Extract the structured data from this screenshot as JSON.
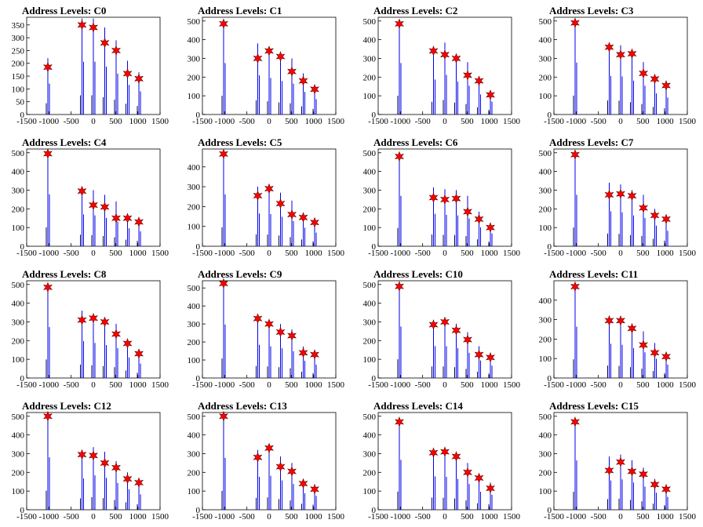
{
  "chart_data": [
    {
      "type": "bar",
      "title": "Address Levels: C0",
      "xlim": [
        -1500,
        1500
      ],
      "ylim": [
        0,
        380
      ],
      "yticks": [
        0,
        50,
        100,
        150,
        200,
        250,
        300,
        350
      ],
      "xticks": [
        -1500,
        -1000,
        -500,
        0,
        500,
        1000,
        1500
      ],
      "x": [
        -1024,
        -256,
        0,
        256,
        512,
        768,
        1024
      ],
      "values": [
        220,
        375,
        375,
        340,
        290,
        210,
        165
      ],
      "markers": [
        185,
        350,
        340,
        280,
        250,
        160,
        140
      ]
    },
    {
      "type": "bar",
      "title": "Address Levels: C1",
      "xlim": [
        -1500,
        1500
      ],
      "ylim": [
        0,
        520
      ],
      "yticks": [
        0,
        100,
        200,
        300,
        400,
        500
      ],
      "xticks": [
        -1500,
        -1000,
        -500,
        0,
        500,
        1000,
        1500
      ],
      "x": [
        -1024,
        -256,
        0,
        256,
        512,
        768,
        1024
      ],
      "values": [
        500,
        380,
        355,
        325,
        300,
        220,
        150
      ],
      "markers": [
        485,
        300,
        340,
        310,
        230,
        180,
        135
      ]
    },
    {
      "type": "bar",
      "title": "Address Levels: C2",
      "xlim": [
        -1500,
        1500
      ],
      "ylim": [
        0,
        520
      ],
      "yticks": [
        0,
        100,
        200,
        300,
        400,
        500
      ],
      "xticks": [
        -1500,
        -1000,
        -500,
        0,
        500,
        1000,
        1500
      ],
      "x": [
        -1024,
        -256,
        0,
        256,
        512,
        768,
        1024
      ],
      "values": [
        500,
        340,
        385,
        320,
        280,
        195,
        125
      ],
      "markers": [
        485,
        340,
        320,
        300,
        210,
        180,
        105
      ]
    },
    {
      "type": "bar",
      "title": "Address Levels: C3",
      "xlim": [
        -1500,
        1500
      ],
      "ylim": [
        0,
        520
      ],
      "yticks": [
        0,
        100,
        200,
        300,
        400,
        500
      ],
      "xticks": [
        -1500,
        -1000,
        -500,
        0,
        500,
        1000,
        1500
      ],
      "x": [
        -1024,
        -256,
        0,
        256,
        512,
        768,
        1024
      ],
      "values": [
        505,
        375,
        370,
        330,
        280,
        205,
        165
      ],
      "markers": [
        490,
        360,
        320,
        325,
        220,
        190,
        155
      ]
    },
    {
      "type": "bar",
      "title": "Address Levels: C4",
      "xlim": [
        -1500,
        1500
      ],
      "ylim": [
        0,
        520
      ],
      "yticks": [
        0,
        100,
        200,
        300,
        400,
        500
      ],
      "xticks": [
        -1500,
        -1000,
        -500,
        0,
        500,
        1000,
        1500
      ],
      "x": [
        -1024,
        -256,
        0,
        256,
        512,
        768,
        1024
      ],
      "values": [
        505,
        310,
        300,
        275,
        240,
        175,
        145
      ],
      "markers": [
        495,
        295,
        220,
        210,
        150,
        150,
        130
      ]
    },
    {
      "type": "bar",
      "title": "Address Levels: C5",
      "xlim": [
        -1500,
        1500
      ],
      "ylim": [
        0,
        490
      ],
      "yticks": [
        0,
        100,
        200,
        300,
        400
      ],
      "xticks": [
        -1500,
        -1000,
        -500,
        0,
        500,
        1000,
        1500
      ],
      "x": [
        -1024,
        -256,
        0,
        256,
        512,
        768,
        1024
      ],
      "values": [
        475,
        300,
        295,
        270,
        230,
        170,
        125
      ],
      "markers": [
        465,
        255,
        290,
        215,
        160,
        145,
        120
      ]
    },
    {
      "type": "bar",
      "title": "Address Levels: C6",
      "xlim": [
        -1500,
        1500
      ],
      "ylim": [
        0,
        520
      ],
      "yticks": [
        0,
        100,
        200,
        300,
        400,
        500
      ],
      "xticks": [
        -1500,
        -1000,
        -500,
        0,
        500,
        1000,
        1500
      ],
      "x": [
        -1024,
        -256,
        0,
        256,
        512,
        768,
        1024
      ],
      "values": [
        490,
        315,
        305,
        300,
        270,
        185,
        125
      ],
      "markers": [
        480,
        260,
        250,
        255,
        185,
        145,
        100
      ]
    },
    {
      "type": "bar",
      "title": "Address Levels: C7",
      "xlim": [
        -1500,
        1500
      ],
      "ylim": [
        0,
        520
      ],
      "yticks": [
        0,
        100,
        200,
        300,
        400,
        500
      ],
      "xticks": [
        -1500,
        -1000,
        -500,
        0,
        500,
        1000,
        1500
      ],
      "x": [
        -1024,
        -256,
        0,
        256,
        512,
        768,
        1024
      ],
      "values": [
        500,
        340,
        330,
        300,
        275,
        200,
        150
      ],
      "markers": [
        490,
        275,
        280,
        270,
        205,
        165,
        145
      ]
    },
    {
      "type": "bar",
      "title": "Address Levels: C8",
      "xlim": [
        -1500,
        1500
      ],
      "ylim": [
        0,
        520
      ],
      "yticks": [
        0,
        100,
        200,
        300,
        400,
        500
      ],
      "xticks": [
        -1500,
        -1000,
        -500,
        0,
        500,
        1000,
        1500
      ],
      "x": [
        -1024,
        -256,
        0,
        256,
        512,
        768,
        1024
      ],
      "values": [
        495,
        360,
        340,
        320,
        290,
        200,
        140
      ],
      "markers": [
        485,
        310,
        320,
        300,
        235,
        185,
        130
      ]
    },
    {
      "type": "bar",
      "title": "Address Levels: C9",
      "xlim": [
        -1500,
        1500
      ],
      "ylim": [
        0,
        540
      ],
      "yticks": [
        0,
        100,
        200,
        300,
        400,
        500
      ],
      "xticks": [
        -1500,
        -1000,
        -500,
        0,
        500,
        1000,
        1500
      ],
      "x": [
        -1024,
        -256,
        0,
        256,
        512,
        768,
        1024
      ],
      "values": [
        540,
        335,
        320,
        300,
        270,
        175,
        135
      ],
      "markers": [
        525,
        330,
        300,
        255,
        235,
        140,
        130
      ]
    },
    {
      "type": "bar",
      "title": "Address Levels: C10",
      "xlim": [
        -1500,
        1500
      ],
      "ylim": [
        0,
        520
      ],
      "yticks": [
        0,
        100,
        200,
        300,
        400,
        500
      ],
      "xticks": [
        -1500,
        -1000,
        -500,
        0,
        500,
        1000,
        1500
      ],
      "x": [
        -1024,
        -256,
        0,
        256,
        512,
        768,
        1024
      ],
      "values": [
        500,
        310,
        310,
        290,
        245,
        170,
        120
      ],
      "markers": [
        490,
        285,
        300,
        255,
        205,
        125,
        110
      ]
    },
    {
      "type": "bar",
      "title": "Address Levels: C11",
      "xlim": [
        -1500,
        1500
      ],
      "ylim": [
        0,
        500
      ],
      "yticks": [
        0,
        100,
        200,
        300,
        400
      ],
      "xticks": [
        -1500,
        -1000,
        -500,
        0,
        500,
        1000,
        1500
      ],
      "x": [
        -1024,
        -256,
        0,
        256,
        512,
        768,
        1024
      ],
      "values": [
        480,
        320,
        310,
        280,
        240,
        180,
        125
      ],
      "markers": [
        470,
        295,
        295,
        255,
        170,
        130,
        110
      ]
    },
    {
      "type": "bar",
      "title": "Address Levels: C12",
      "xlim": [
        -1500,
        1500
      ],
      "ylim": [
        0,
        520
      ],
      "yticks": [
        0,
        100,
        200,
        300,
        400,
        500
      ],
      "xticks": [
        -1500,
        -1000,
        -500,
        0,
        500,
        1000,
        1500
      ],
      "x": [
        -1024,
        -256,
        0,
        256,
        512,
        768,
        1024
      ],
      "values": [
        510,
        305,
        335,
        310,
        260,
        200,
        150
      ],
      "markers": [
        500,
        295,
        290,
        250,
        225,
        165,
        145
      ]
    },
    {
      "type": "bar",
      "title": "Address Levels: C13",
      "xlim": [
        -1500,
        1500
      ],
      "ylim": [
        0,
        520
      ],
      "yticks": [
        0,
        100,
        200,
        300,
        400,
        500
      ],
      "xticks": [
        -1500,
        -1000,
        -500,
        0,
        500,
        1000,
        1500
      ],
      "x": [
        -1024,
        -256,
        0,
        256,
        512,
        768,
        1024
      ],
      "values": [
        505,
        320,
        330,
        285,
        250,
        160,
        135
      ],
      "markers": [
        500,
        280,
        330,
        230,
        205,
        140,
        110
      ]
    },
    {
      "type": "bar",
      "title": "Address Levels: C14",
      "xlim": [
        -1500,
        1500
      ],
      "ylim": [
        0,
        520
      ],
      "yticks": [
        0,
        100,
        200,
        300,
        400,
        500
      ],
      "xticks": [
        -1500,
        -1000,
        -500,
        0,
        500,
        1000,
        1500
      ],
      "x": [
        -1024,
        -256,
        0,
        256,
        512,
        768,
        1024
      ],
      "values": [
        485,
        325,
        320,
        300,
        250,
        175,
        145
      ],
      "markers": [
        470,
        305,
        310,
        285,
        200,
        170,
        115
      ]
    },
    {
      "type": "bar",
      "title": "Address Levels: C15",
      "xlim": [
        -1500,
        1500
      ],
      "ylim": [
        0,
        520
      ],
      "yticks": [
        0,
        100,
        200,
        300,
        400,
        500
      ],
      "xticks": [
        -1500,
        -1000,
        -500,
        0,
        500,
        1000,
        1500
      ],
      "x": [
        -1024,
        -256,
        0,
        256,
        512,
        768,
        1024
      ],
      "values": [
        480,
        285,
        295,
        265,
        225,
        165,
        125
      ],
      "markers": [
        470,
        210,
        255,
        205,
        190,
        135,
        110
      ]
    }
  ],
  "colors": {
    "bar": "#0000ee",
    "marker": "#ff0000",
    "axis": "#000000"
  }
}
